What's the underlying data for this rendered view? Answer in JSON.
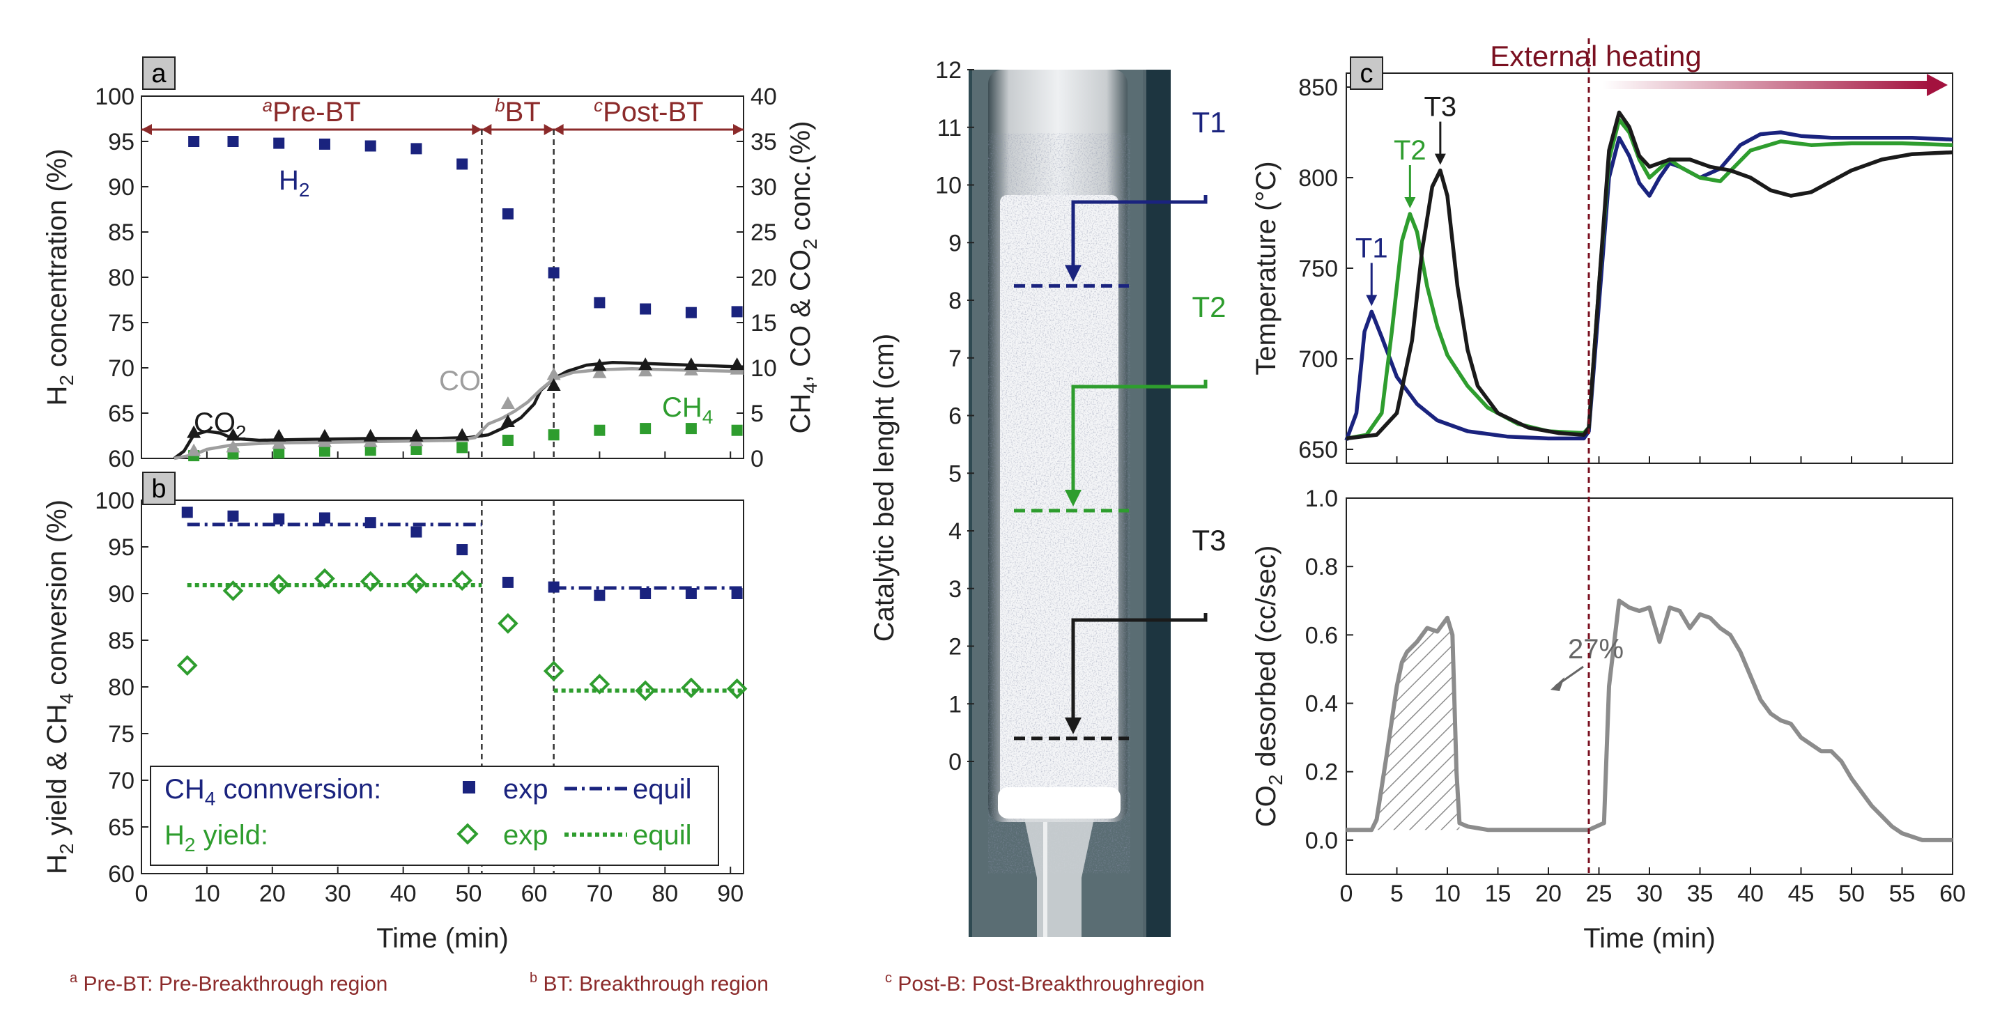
{
  "chart_data": [
    {
      "panel": "a",
      "type": "scatter",
      "title": "",
      "xlabel": "Time (min)",
      "ylabel_left": "H₂ concentration (%)",
      "ylabel_right": "CH₄, CO & CO₂ conc.(%)",
      "xlim": [
        0,
        92
      ],
      "ylim_left": [
        60,
        100
      ],
      "ylim_right": [
        0,
        40
      ],
      "xticks": [
        0,
        10,
        20,
        30,
        40,
        50,
        60,
        70,
        80,
        90
      ],
      "yticks_left": [
        60,
        65,
        70,
        75,
        80,
        85,
        90,
        95,
        100
      ],
      "yticks_right": [
        0,
        5,
        10,
        15,
        20,
        25,
        30,
        35,
        40
      ],
      "regions": [
        {
          "sup": "a",
          "label": "Pre-BT",
          "from": 0,
          "to": 52
        },
        {
          "sup": "b",
          "label": "BT",
          "from": 52,
          "to": 63
        },
        {
          "sup": "c",
          "label": "Post-BT",
          "from": 63,
          "to": 92
        }
      ],
      "boundaries": [
        52,
        63
      ],
      "series": [
        {
          "name": "H2",
          "label": "H",
          "sub": "2",
          "axis": "left",
          "color": "#1a237e",
          "marker": "square",
          "x": [
            8,
            14,
            21,
            28,
            35,
            42,
            49,
            56,
            63,
            70,
            77,
            84,
            91
          ],
          "y": [
            95,
            95,
            94.8,
            94.7,
            94.5,
            94.2,
            92.5,
            87,
            80.5,
            77.2,
            76.5,
            76.1,
            76.2
          ]
        },
        {
          "name": "CH4",
          "label": "CH",
          "sub": "4",
          "axis": "right",
          "color": "#2e9d2e",
          "marker": "square",
          "x": [
            8,
            14,
            21,
            28,
            35,
            42,
            49,
            56,
            63,
            70,
            77,
            84,
            91
          ],
          "y": [
            0.3,
            0.5,
            0.6,
            0.8,
            0.9,
            1.0,
            1.2,
            2.0,
            2.6,
            3.1,
            3.3,
            3.3,
            3.1
          ]
        },
        {
          "name": "CO",
          "label": "CO",
          "sub": "",
          "axis": "right",
          "color": "#9e9e9e",
          "marker": "triangle",
          "x": [
            8,
            14,
            21,
            28,
            35,
            42,
            49,
            56,
            63,
            70,
            77,
            84,
            91
          ],
          "y": [
            0.8,
            1.2,
            1.6,
            1.8,
            1.8,
            1.9,
            2.4,
            6.0,
            9.2,
            9.4,
            9.6,
            9.7,
            9.8
          ]
        },
        {
          "name": "CO2",
          "label": "CO",
          "sub": "2",
          "axis": "right",
          "color": "#1a1a1a",
          "marker": "triangle",
          "x": [
            8,
            14,
            21,
            28,
            35,
            42,
            49,
            56,
            63,
            70,
            77,
            84,
            91
          ],
          "y": [
            2.8,
            2.5,
            2.4,
            2.4,
            2.4,
            2.4,
            2.5,
            4.0,
            8.0,
            10.2,
            10.3,
            10.3,
            10.3
          ]
        }
      ],
      "fit_lines": [
        {
          "name": "CO2 fit",
          "color": "#1a1a1a",
          "x": [
            5,
            6.5,
            8,
            10,
            12,
            14,
            18,
            25,
            35,
            45,
            50,
            53,
            56,
            58,
            60,
            61,
            63,
            65,
            68,
            72,
            80,
            88,
            92
          ],
          "y": [
            0,
            0.8,
            2.6,
            3.0,
            2.8,
            2.2,
            2.0,
            2.1,
            2.2,
            2.2,
            2.3,
            2.6,
            3.6,
            4.5,
            6.0,
            7.5,
            8.8,
            9.6,
            10.3,
            10.6,
            10.4,
            10.2,
            10.1
          ]
        },
        {
          "name": "CO fit",
          "color": "#9e9e9e",
          "x": [
            5,
            8,
            10,
            14,
            20,
            30,
            40,
            48,
            51,
            53,
            55,
            57,
            59,
            61,
            63,
            66,
            70,
            75,
            80,
            86,
            92
          ],
          "y": [
            0,
            0.4,
            1.0,
            1.5,
            1.7,
            1.8,
            1.9,
            2.0,
            2.3,
            3.8,
            4.4,
            5.2,
            6.2,
            7.6,
            8.8,
            9.5,
            9.8,
            9.9,
            9.8,
            9.7,
            9.6
          ]
        }
      ]
    },
    {
      "panel": "b",
      "type": "scatter",
      "xlabel": "Time (min)",
      "ylabel": "H₂ yield & CH₄ conversion (%)",
      "xlim": [
        0,
        92
      ],
      "ylim": [
        60,
        100
      ],
      "xticks": [
        0,
        10,
        20,
        30,
        40,
        50,
        60,
        70,
        80,
        90
      ],
      "yticks": [
        60,
        65,
        70,
        75,
        80,
        85,
        90,
        95,
        100
      ],
      "series": [
        {
          "name": "CH4 conversion exp",
          "color": "#1a237e",
          "marker": "square",
          "x": [
            7,
            14,
            21,
            28,
            35,
            42,
            49,
            56,
            63,
            70,
            77,
            84,
            91
          ],
          "y": [
            98.7,
            98.3,
            98.0,
            98.1,
            97.6,
            96.6,
            94.7,
            91.2,
            90.7,
            89.8,
            90.0,
            90.0,
            90.0
          ]
        },
        {
          "name": "H2 yield exp",
          "color": "#2e9d2e",
          "marker": "diamond",
          "x": [
            7,
            14,
            21,
            28,
            35,
            42,
            49,
            56,
            63,
            70,
            77,
            84,
            91
          ],
          "y": [
            82.3,
            90.3,
            91.0,
            91.6,
            91.3,
            91.1,
            91.4,
            86.8,
            81.7,
            80.3,
            79.6,
            79.9,
            79.8
          ]
        }
      ],
      "equil_lines": [
        {
          "name": "CH4 conversion equil",
          "color": "#1a237e",
          "style": "dashdot",
          "segments": [
            {
              "x": [
                7,
                52
              ],
              "y": 97.4
            },
            {
              "x": [
                63,
                92
              ],
              "y": 90.6
            }
          ]
        },
        {
          "name": "H2 yield equil",
          "color": "#2e9d2e",
          "style": "dotted",
          "segments": [
            {
              "x": [
                7,
                52
              ],
              "y": 90.9
            },
            {
              "x": [
                63,
                92
              ],
              "y": 79.6
            }
          ]
        }
      ],
      "legend": {
        "row1": {
          "label": "CH",
          "sub": "4",
          "rest": " connversion:",
          "exp": "exp",
          "equil": "equil"
        },
        "row2": {
          "label": "H",
          "sub": "2",
          "rest": " yield:",
          "exp": "exp",
          "equil": "equil"
        }
      }
    },
    {
      "panel": "photo",
      "type": "other",
      "ylabel": "Catalytic bed lenght (cm)",
      "ylim": [
        0,
        12
      ],
      "yticks": [
        0,
        1,
        2,
        3,
        4,
        5,
        6,
        7,
        8,
        9,
        10,
        11,
        12
      ],
      "thermocouples": [
        {
          "name": "T1",
          "color": "#1a237e",
          "position_cm": 8.25
        },
        {
          "name": "T2",
          "color": "#2e9d2e",
          "position_cm": 4.35
        },
        {
          "name": "T3",
          "color": "#1a1a1a",
          "position_cm": 0.4
        }
      ]
    },
    {
      "panel": "c",
      "type": "line",
      "xlabel": "Time (min)",
      "ylabel": "Temperature (°C)",
      "xlim": [
        0,
        60
      ],
      "ylim": [
        650,
        850
      ],
      "xticks": [
        0,
        5,
        10,
        15,
        20,
        25,
        30,
        35,
        40,
        45,
        50,
        55,
        60
      ],
      "yticks": [
        650,
        700,
        750,
        800,
        850
      ],
      "annotation": "External heating",
      "annotation_start": 24,
      "series": [
        {
          "name": "T1",
          "color": "#1a237e",
          "x": [
            0,
            1,
            1.8,
            2.5,
            3.5,
            5,
            7,
            9,
            12,
            16,
            20,
            23.5,
            24,
            25,
            26,
            27,
            28,
            29,
            30,
            31,
            32,
            33,
            35,
            37,
            39,
            41,
            43,
            45,
            48,
            52,
            56,
            60
          ],
          "y": [
            655,
            670,
            715,
            726,
            712,
            690,
            675,
            666,
            660,
            657,
            656,
            656,
            660,
            730,
            800,
            822,
            812,
            797,
            790,
            800,
            808,
            806,
            800,
            805,
            818,
            824,
            825,
            823,
            822,
            822,
            822,
            821
          ]
        },
        {
          "name": "T2",
          "color": "#2e9d2e",
          "x": [
            0,
            2,
            3.5,
            4.5,
            5.5,
            6.3,
            7,
            8,
            9,
            10,
            12,
            14,
            17,
            20,
            23.5,
            24,
            25,
            26,
            27,
            28,
            29,
            30,
            31,
            32,
            33,
            35,
            37,
            40,
            43,
            46,
            50,
            55,
            60
          ],
          "y": [
            656,
            658,
            670,
            715,
            765,
            780,
            770,
            740,
            718,
            702,
            685,
            673,
            664,
            660,
            659,
            662,
            740,
            810,
            832,
            825,
            810,
            800,
            805,
            810,
            806,
            800,
            798,
            815,
            820,
            818,
            819,
            819,
            818
          ]
        },
        {
          "name": "T3",
          "color": "#1a1a1a",
          "x": [
            0,
            3,
            5,
            6.5,
            7.5,
            8.5,
            9.3,
            10,
            11,
            12,
            13,
            15,
            18,
            21,
            23.5,
            24,
            25,
            26,
            27,
            28,
            29,
            30,
            31,
            32,
            34,
            36,
            38,
            40,
            42,
            44,
            46,
            48,
            50,
            53,
            56,
            60
          ],
          "y": [
            656,
            658,
            670,
            710,
            760,
            795,
            804,
            790,
            740,
            705,
            685,
            670,
            662,
            659,
            658,
            662,
            740,
            815,
            836,
            828,
            812,
            806,
            808,
            810,
            810,
            806,
            804,
            800,
            793,
            790,
            792,
            798,
            804,
            810,
            813,
            814
          ]
        }
      ],
      "peak_labels": [
        {
          "name": "T1",
          "color": "#1a237e",
          "x": 2.5,
          "y": 726
        },
        {
          "name": "T2",
          "color": "#2e9d2e",
          "x": 6.3,
          "y": 780
        },
        {
          "name": "T3",
          "color": "#1a1a1a",
          "x": 9.3,
          "y": 804
        }
      ]
    },
    {
      "panel": "c-lower",
      "type": "area",
      "xlabel": "Time (min)",
      "ylabel": "CO₂ desorbed (cc/sec)",
      "ylabel_main": "CO",
      "ylabel_sub": "2",
      "ylabel_rest": " desorbed (cc/sec)",
      "xlim": [
        0,
        60
      ],
      "ylim": [
        -0.1,
        1.0
      ],
      "xticks": [
        0,
        5,
        10,
        15,
        20,
        25,
        30,
        35,
        40,
        45,
        50,
        55,
        60
      ],
      "yticks": [
        0.0,
        0.2,
        0.4,
        0.6,
        0.8,
        1.0
      ],
      "annotation": "27%",
      "series": [
        {
          "name": "CO2 desorbed",
          "color": "#8c8c8c",
          "x": [
            0,
            2.5,
            3,
            4,
            5,
            5.5,
            6,
            7,
            8,
            9,
            10,
            10.5,
            10.9,
            11.2,
            12,
            14,
            16,
            20,
            23.5,
            24,
            25.5,
            26,
            27,
            28,
            29,
            30,
            31,
            32,
            33,
            34,
            35,
            36,
            37,
            38,
            39,
            40,
            41,
            42,
            43,
            44,
            45,
            46,
            47,
            48,
            49,
            50,
            51,
            52,
            53,
            54,
            55,
            56,
            57,
            58,
            59,
            60
          ],
          "y": [
            0.03,
            0.03,
            0.06,
            0.25,
            0.45,
            0.52,
            0.55,
            0.58,
            0.62,
            0.61,
            0.65,
            0.6,
            0.2,
            0.05,
            0.04,
            0.03,
            0.03,
            0.03,
            0.03,
            0.03,
            0.05,
            0.45,
            0.7,
            0.68,
            0.67,
            0.68,
            0.58,
            0.68,
            0.67,
            0.62,
            0.66,
            0.65,
            0.62,
            0.6,
            0.55,
            0.48,
            0.41,
            0.37,
            0.35,
            0.34,
            0.3,
            0.28,
            0.26,
            0.26,
            0.23,
            0.18,
            0.14,
            0.1,
            0.07,
            0.04,
            0.02,
            0.01,
            0.0,
            0.0,
            0.0,
            0.0
          ]
        },
        {
          "name": "hatched region",
          "color": "#8c8c8c",
          "hatched": true,
          "x_from": 2.5,
          "x_to": 11.2
        }
      ]
    }
  ],
  "labels": {
    "panel_a": "a",
    "panel_b": "b",
    "panel_c": "c"
  },
  "footnotes": [
    {
      "sup": "a",
      "text": "Pre-BT: Pre-Breakthrough region"
    },
    {
      "sup": "b",
      "text": "BT: Breakthrough region"
    },
    {
      "sup": "c",
      "text": "Post-B: Post-Breakthroughregion"
    }
  ],
  "colors": {
    "navy": "#1a237e",
    "green": "#2e9d2e",
    "gray": "#9e9e9e",
    "black": "#1a1a1a",
    "maroon": "#8b2a2a",
    "heating": "#a3123e"
  }
}
